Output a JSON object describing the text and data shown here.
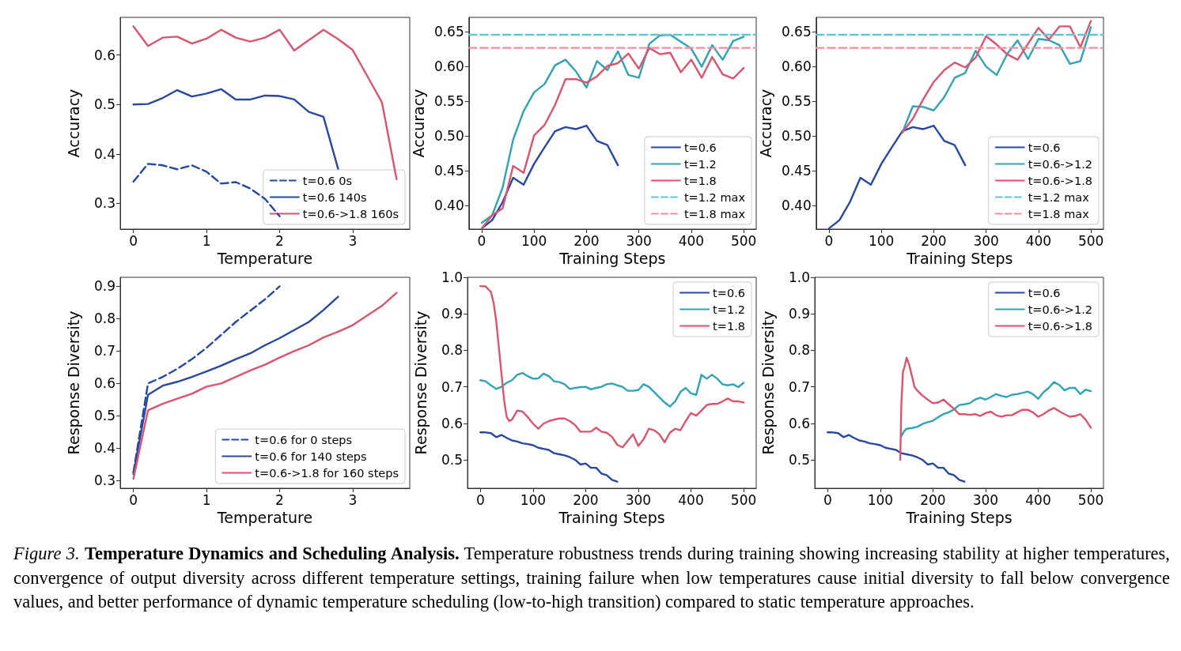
{
  "chart_data": [
    {
      "type": "line",
      "xlabel": "Temperature",
      "ylabel": "Accuracy",
      "xlim": [
        -0.18,
        3.78
      ],
      "xticks": [
        0,
        1,
        2,
        3
      ],
      "ylim": [
        0.248,
        0.676
      ],
      "yticks": [
        0.3,
        0.4,
        0.5,
        0.6
      ],
      "grid": false,
      "legend": "bottom right",
      "series": [
        {
          "name": "t=0.6 0s",
          "color": "#2848a0",
          "line_style": "dashed",
          "x": [
            0,
            0.2,
            0.4,
            0.6,
            0.8,
            1.0,
            1.2,
            1.4,
            1.6,
            1.8,
            2.0
          ],
          "values": [
            0.344,
            0.38,
            0.377,
            0.369,
            0.377,
            0.364,
            0.34,
            0.343,
            0.33,
            0.309,
            0.274
          ]
        },
        {
          "name": "t=0.6 140s",
          "color": "#2848a0",
          "x": [
            0,
            0.2,
            0.4,
            0.6,
            0.8,
            1.0,
            1.2,
            1.4,
            1.6,
            1.8,
            2.0,
            2.2,
            2.4,
            2.6,
            2.8
          ],
          "values": [
            0.5,
            0.501,
            0.513,
            0.529,
            0.516,
            0.522,
            0.531,
            0.51,
            0.51,
            0.518,
            0.517,
            0.51,
            0.485,
            0.475,
            0.37
          ]
        },
        {
          "name": "t=0.6->1.8 160s",
          "color": "#d9546f",
          "x": [
            0,
            0.2,
            0.4,
            0.6,
            0.8,
            1.0,
            1.2,
            1.4,
            1.6,
            1.8,
            2.0,
            2.2,
            2.4,
            2.6,
            2.8,
            3.0,
            3.2,
            3.4,
            3.6
          ],
          "values": [
            0.658,
            0.618,
            0.635,
            0.637,
            0.623,
            0.633,
            0.651,
            0.635,
            0.627,
            0.635,
            0.651,
            0.609,
            0.63,
            0.651,
            0.632,
            0.61,
            0.557,
            0.504,
            0.349
          ]
        }
      ],
      "annotations": [
        "Figure 3.",
        "Temperature Dynamics and Scheduling Analysis.",
        "Temperature robustness trends during training showing increasing stability at higher temperatures, convergence of output diversity across different temperature settings, training failure when low temperatures cause initial diversity to fall below convergence values, and better performance of dynamic temperature scheduling (low-to-high transition) compared to static temperature approaches."
      ]
    },
    {
      "type": "line",
      "xlabel": "Training Steps",
      "ylabel": "Accuracy",
      "xlim": [
        -24.5,
        524
      ],
      "xticks": [
        0,
        100,
        200,
        300,
        400,
        500
      ],
      "ylim": [
        0.366,
        0.671
      ],
      "yticks": [
        {
          "value": 0.4,
          "label": "0.40"
        },
        0.45,
        {
          "value": 0.5,
          "label": "0.50"
        },
        0.55,
        {
          "value": 0.6,
          "label": "0.60"
        },
        0.65
      ],
      "grid": false,
      "legend": "bottom right",
      "series": [
        {
          "name": "t=0.6",
          "color": "#2848a0",
          "x": [
            0,
            20,
            40,
            60,
            80,
            100,
            120,
            140,
            160,
            180,
            200,
            220,
            240,
            260
          ],
          "values": [
            0.367,
            0.379,
            0.405,
            0.44,
            0.43,
            0.46,
            0.484,
            0.507,
            0.513,
            0.51,
            0.515,
            0.493,
            0.487,
            0.458
          ]
        },
        {
          "name": "t=1.2",
          "color": "#2ea4b5",
          "x": [
            0,
            20,
            40,
            60,
            80,
            100,
            120,
            140,
            160,
            180,
            200,
            220,
            240,
            260,
            280,
            300,
            320,
            340,
            360,
            380,
            400,
            420,
            440,
            460,
            480,
            500
          ],
          "values": [
            0.375,
            0.386,
            0.426,
            0.495,
            0.536,
            0.563,
            0.575,
            0.602,
            0.61,
            0.593,
            0.57,
            0.608,
            0.595,
            0.622,
            0.588,
            0.584,
            0.633,
            0.645,
            0.646,
            0.636,
            0.626,
            0.6,
            0.631,
            0.61,
            0.637,
            0.643
          ]
        },
        {
          "name": "t=1.8",
          "color": "#d9546f",
          "x": [
            0,
            20,
            40,
            60,
            80,
            100,
            120,
            140,
            160,
            180,
            200,
            220,
            240,
            260,
            280,
            300,
            320,
            340,
            360,
            380,
            400,
            420,
            440,
            460,
            480,
            500
          ],
          "values": [
            0.367,
            0.386,
            0.396,
            0.457,
            0.447,
            0.501,
            0.516,
            0.545,
            0.582,
            0.582,
            0.577,
            0.586,
            0.601,
            0.605,
            0.619,
            0.597,
            0.627,
            0.618,
            0.62,
            0.592,
            0.61,
            0.584,
            0.614,
            0.589,
            0.583,
            0.598
          ]
        },
        {
          "name": "t=1.2 max",
          "color": "#66c3d1",
          "line_style": "dashed",
          "x": [
            -24.5,
            524
          ],
          "values": [
            0.646,
            0.646
          ]
        },
        {
          "name": "t=1.8 max",
          "color": "#ee8fa3",
          "line_style": "dashed",
          "x": [
            -24.5,
            524
          ],
          "values": [
            0.627,
            0.627
          ]
        }
      ]
    },
    {
      "type": "line",
      "xlabel": "Training Steps",
      "ylabel": "Accuracy",
      "xlim": [
        -24.5,
        524
      ],
      "xticks": [
        0,
        100,
        200,
        300,
        400,
        500
      ],
      "ylim": [
        0.366,
        0.671
      ],
      "yticks": [
        {
          "value": 0.4,
          "label": "0.40"
        },
        0.45,
        {
          "value": 0.5,
          "label": "0.50"
        },
        0.55,
        {
          "value": 0.6,
          "label": "0.60"
        },
        0.65
      ],
      "grid": false,
      "legend": "bottom right",
      "series": [
        {
          "name": "t=0.6",
          "color": "#2848a0",
          "x": [
            0,
            20,
            40,
            60,
            80,
            100,
            120,
            140,
            160,
            180,
            200,
            220,
            240,
            260
          ],
          "values": [
            0.367,
            0.379,
            0.405,
            0.44,
            0.43,
            0.46,
            0.484,
            0.507,
            0.513,
            0.51,
            0.515,
            0.493,
            0.487,
            0.458
          ]
        },
        {
          "name": "t=0.6->1.2",
          "color": "#2ea4b5",
          "x": [
            140,
            160,
            180,
            200,
            220,
            240,
            260,
            280,
            300,
            320,
            340,
            360,
            380,
            400,
            420,
            440,
            460,
            480,
            500
          ],
          "values": [
            0.505,
            0.543,
            0.542,
            0.537,
            0.556,
            0.584,
            0.591,
            0.623,
            0.6,
            0.588,
            0.618,
            0.638,
            0.611,
            0.64,
            0.638,
            0.631,
            0.604,
            0.608,
            0.657
          ]
        },
        {
          "name": "t=0.6->1.8",
          "color": "#d9546f",
          "x": [
            140,
            160,
            180,
            200,
            220,
            240,
            260,
            280,
            300,
            320,
            340,
            360,
            380,
            400,
            420,
            440,
            460,
            480,
            500
          ],
          "values": [
            0.505,
            0.525,
            0.553,
            0.578,
            0.595,
            0.606,
            0.599,
            0.613,
            0.644,
            0.632,
            0.618,
            0.61,
            0.633,
            0.656,
            0.639,
            0.658,
            0.658,
            0.628,
            0.666
          ]
        },
        {
          "name": "t=1.2 max",
          "color": "#66c3d1",
          "line_style": "dashed",
          "x": [
            -24.5,
            524
          ],
          "values": [
            0.646,
            0.646
          ]
        },
        {
          "name": "t=1.8 max",
          "color": "#ee8fa3",
          "line_style": "dashed",
          "x": [
            -24.5,
            524
          ],
          "values": [
            0.627,
            0.627
          ]
        }
      ]
    },
    {
      "type": "line",
      "xlabel": "Temperature",
      "ylabel": "Response Diversity",
      "xlim": [
        -0.18,
        3.78
      ],
      "xticks": [
        0,
        1,
        2,
        3
      ],
      "ylim": [
        0.276,
        0.928
      ],
      "yticks": [
        0.3,
        0.4,
        0.5,
        0.6,
        0.7,
        0.8,
        0.9
      ],
      "grid": false,
      "legend": "bottom right",
      "series": [
        {
          "name": "t=0.6 for 0 steps",
          "color": "#2848a0",
          "line_style": "dashed",
          "x": [
            0,
            0.2,
            0.4,
            0.6,
            0.8,
            1.0,
            1.2,
            1.4,
            1.6,
            1.8,
            2.0
          ],
          "values": [
            0.325,
            0.6,
            0.62,
            0.645,
            0.675,
            0.71,
            0.75,
            0.79,
            0.825,
            0.86,
            0.9
          ]
        },
        {
          "name": "t=0.6 for 140 steps",
          "color": "#2848a0",
          "x": [
            0,
            0.2,
            0.4,
            0.6,
            0.8,
            1.0,
            1.2,
            1.4,
            1.6,
            1.8,
            2.0,
            2.2,
            2.4,
            2.6,
            2.8
          ],
          "values": [
            0.32,
            0.565,
            0.593,
            0.605,
            0.62,
            0.637,
            0.655,
            0.675,
            0.693,
            0.718,
            0.74,
            0.765,
            0.79,
            0.827,
            0.868
          ]
        },
        {
          "name": "t=0.6->1.8 for 160 steps",
          "color": "#d9546f",
          "x": [
            0,
            0.2,
            0.4,
            0.6,
            0.8,
            1.0,
            1.2,
            1.4,
            1.6,
            1.8,
            2.0,
            2.2,
            2.4,
            2.6,
            2.8,
            3.0,
            3.2,
            3.4,
            3.6
          ],
          "values": [
            0.305,
            0.517,
            0.537,
            0.553,
            0.568,
            0.59,
            0.6,
            0.62,
            0.64,
            0.658,
            0.68,
            0.7,
            0.718,
            0.742,
            0.76,
            0.78,
            0.81,
            0.84,
            0.88
          ]
        }
      ]
    },
    {
      "type": "line",
      "xlabel": "Training Steps",
      "ylabel": "Response Diversity",
      "xlim": [
        -24.5,
        524
      ],
      "xticks": [
        0,
        100,
        200,
        300,
        400,
        500
      ],
      "ylim": [
        0.422,
        1.0
      ],
      "yticks": [
        0.5,
        0.6,
        0.7,
        0.8,
        0.9,
        {
          "value": 1,
          "label": "1.0"
        }
      ],
      "grid": false,
      "legend": "top right",
      "series": [
        {
          "name": "t=0.6",
          "color": "#2848a0",
          "x": [
            0,
            10,
            20,
            30,
            40,
            50,
            60,
            70,
            80,
            90,
            100,
            110,
            120,
            130,
            140,
            150,
            160,
            170,
            180,
            190,
            200,
            210,
            220,
            230,
            240,
            250,
            260
          ],
          "values": [
            0.575,
            0.575,
            0.573,
            0.562,
            0.568,
            0.56,
            0.553,
            0.55,
            0.545,
            0.543,
            0.54,
            0.533,
            0.53,
            0.527,
            0.518,
            0.515,
            0.512,
            0.507,
            0.5,
            0.487,
            0.49,
            0.478,
            0.478,
            0.462,
            0.458,
            0.445,
            0.44
          ]
        },
        {
          "name": "t=1.2",
          "color": "#2ea4b5",
          "x": [
            0,
            10,
            20,
            30,
            40,
            50,
            60,
            70,
            80,
            90,
            100,
            110,
            120,
            130,
            140,
            150,
            160,
            170,
            180,
            190,
            200,
            210,
            220,
            230,
            240,
            250,
            260,
            270,
            280,
            290,
            300,
            310,
            320,
            330,
            340,
            350,
            360,
            370,
            380,
            390,
            400,
            410,
            420,
            430,
            440,
            450,
            460,
            470,
            480,
            490,
            500
          ],
          "values": [
            0.718,
            0.715,
            0.704,
            0.694,
            0.7,
            0.711,
            0.718,
            0.733,
            0.738,
            0.729,
            0.722,
            0.723,
            0.736,
            0.729,
            0.715,
            0.713,
            0.707,
            0.694,
            0.697,
            0.699,
            0.7,
            0.693,
            0.697,
            0.7,
            0.707,
            0.709,
            0.704,
            0.7,
            0.689,
            0.689,
            0.691,
            0.707,
            0.7,
            0.686,
            0.671,
            0.657,
            0.646,
            0.66,
            0.686,
            0.697,
            0.682,
            0.678,
            0.733,
            0.722,
            0.733,
            0.722,
            0.707,
            0.704,
            0.707,
            0.699,
            0.711
          ]
        },
        {
          "name": "t=1.8",
          "color": "#d9546f",
          "x": [
            0,
            10,
            20,
            25,
            30,
            35,
            40,
            45,
            50,
            55,
            60,
            70,
            80,
            90,
            100,
            110,
            120,
            130,
            140,
            150,
            160,
            170,
            180,
            190,
            200,
            210,
            220,
            230,
            240,
            250,
            260,
            270,
            280,
            290,
            300,
            310,
            320,
            330,
            340,
            350,
            360,
            370,
            380,
            390,
            400,
            410,
            420,
            430,
            440,
            450,
            460,
            470,
            480,
            490,
            500
          ],
          "values": [
            0.976,
            0.975,
            0.96,
            0.931,
            0.881,
            0.809,
            0.736,
            0.664,
            0.617,
            0.606,
            0.61,
            0.635,
            0.632,
            0.617,
            0.599,
            0.585,
            0.599,
            0.606,
            0.61,
            0.613,
            0.613,
            0.606,
            0.595,
            0.577,
            0.577,
            0.577,
            0.588,
            0.577,
            0.574,
            0.563,
            0.541,
            0.534,
            0.552,
            0.57,
            0.538,
            0.556,
            0.585,
            0.581,
            0.57,
            0.548,
            0.574,
            0.585,
            0.581,
            0.606,
            0.628,
            0.621,
            0.635,
            0.65,
            0.653,
            0.653,
            0.66,
            0.668,
            0.66,
            0.66,
            0.657
          ]
        }
      ]
    },
    {
      "type": "line",
      "xlabel": "Training Steps",
      "ylabel": "Response Diversity",
      "xlim": [
        -24.5,
        524
      ],
      "xticks": [
        0,
        100,
        200,
        300,
        400,
        500
      ],
      "ylim": [
        0.422,
        1.0
      ],
      "yticks": [
        0.5,
        0.6,
        0.7,
        0.8,
        0.9,
        {
          "value": 1,
          "label": "1.0"
        }
      ],
      "grid": false,
      "legend": "top right",
      "series": [
        {
          "name": "t=0.6",
          "color": "#2848a0",
          "x": [
            0,
            10,
            20,
            30,
            40,
            50,
            60,
            70,
            80,
            90,
            100,
            110,
            120,
            130,
            140,
            150,
            160,
            170,
            180,
            190,
            200,
            210,
            220,
            230,
            240,
            250,
            260
          ],
          "values": [
            0.575,
            0.575,
            0.573,
            0.562,
            0.568,
            0.56,
            0.553,
            0.55,
            0.545,
            0.543,
            0.54,
            0.533,
            0.53,
            0.527,
            0.518,
            0.515,
            0.512,
            0.507,
            0.5,
            0.487,
            0.49,
            0.478,
            0.478,
            0.462,
            0.458,
            0.445,
            0.44
          ]
        },
        {
          "name": "t=0.6->1.2",
          "color": "#2ea4b5",
          "x": [
            140,
            145,
            150,
            160,
            170,
            180,
            190,
            200,
            210,
            220,
            230,
            240,
            250,
            260,
            270,
            280,
            290,
            300,
            310,
            320,
            330,
            340,
            350,
            360,
            370,
            380,
            390,
            400,
            410,
            420,
            430,
            440,
            450,
            460,
            470,
            480,
            490,
            500
          ],
          "values": [
            0.565,
            0.578,
            0.585,
            0.587,
            0.59,
            0.598,
            0.603,
            0.607,
            0.617,
            0.625,
            0.63,
            0.638,
            0.65,
            0.652,
            0.655,
            0.665,
            0.67,
            0.665,
            0.672,
            0.68,
            0.675,
            0.672,
            0.678,
            0.68,
            0.683,
            0.687,
            0.68,
            0.667,
            0.685,
            0.697,
            0.713,
            0.705,
            0.69,
            0.697,
            0.697,
            0.68,
            0.692,
            0.688
          ]
        },
        {
          "name": "t=0.6->1.8",
          "color": "#d9546f",
          "x": [
            138,
            140,
            143,
            147,
            150,
            155,
            160,
            165,
            170,
            180,
            190,
            200,
            210,
            220,
            230,
            240,
            250,
            260,
            270,
            280,
            290,
            300,
            310,
            320,
            330,
            340,
            350,
            360,
            370,
            380,
            390,
            400,
            410,
            420,
            430,
            440,
            450,
            460,
            470,
            480,
            490,
            500
          ],
          "values": [
            0.5,
            0.65,
            0.74,
            0.76,
            0.78,
            0.76,
            0.73,
            0.7,
            0.69,
            0.676,
            0.665,
            0.655,
            0.657,
            0.665,
            0.652,
            0.64,
            0.625,
            0.625,
            0.623,
            0.625,
            0.62,
            0.628,
            0.632,
            0.622,
            0.618,
            0.622,
            0.622,
            0.63,
            0.637,
            0.637,
            0.63,
            0.618,
            0.625,
            0.635,
            0.642,
            0.633,
            0.625,
            0.618,
            0.62,
            0.625,
            0.61,
            0.588
          ]
        }
      ]
    }
  ]
}
